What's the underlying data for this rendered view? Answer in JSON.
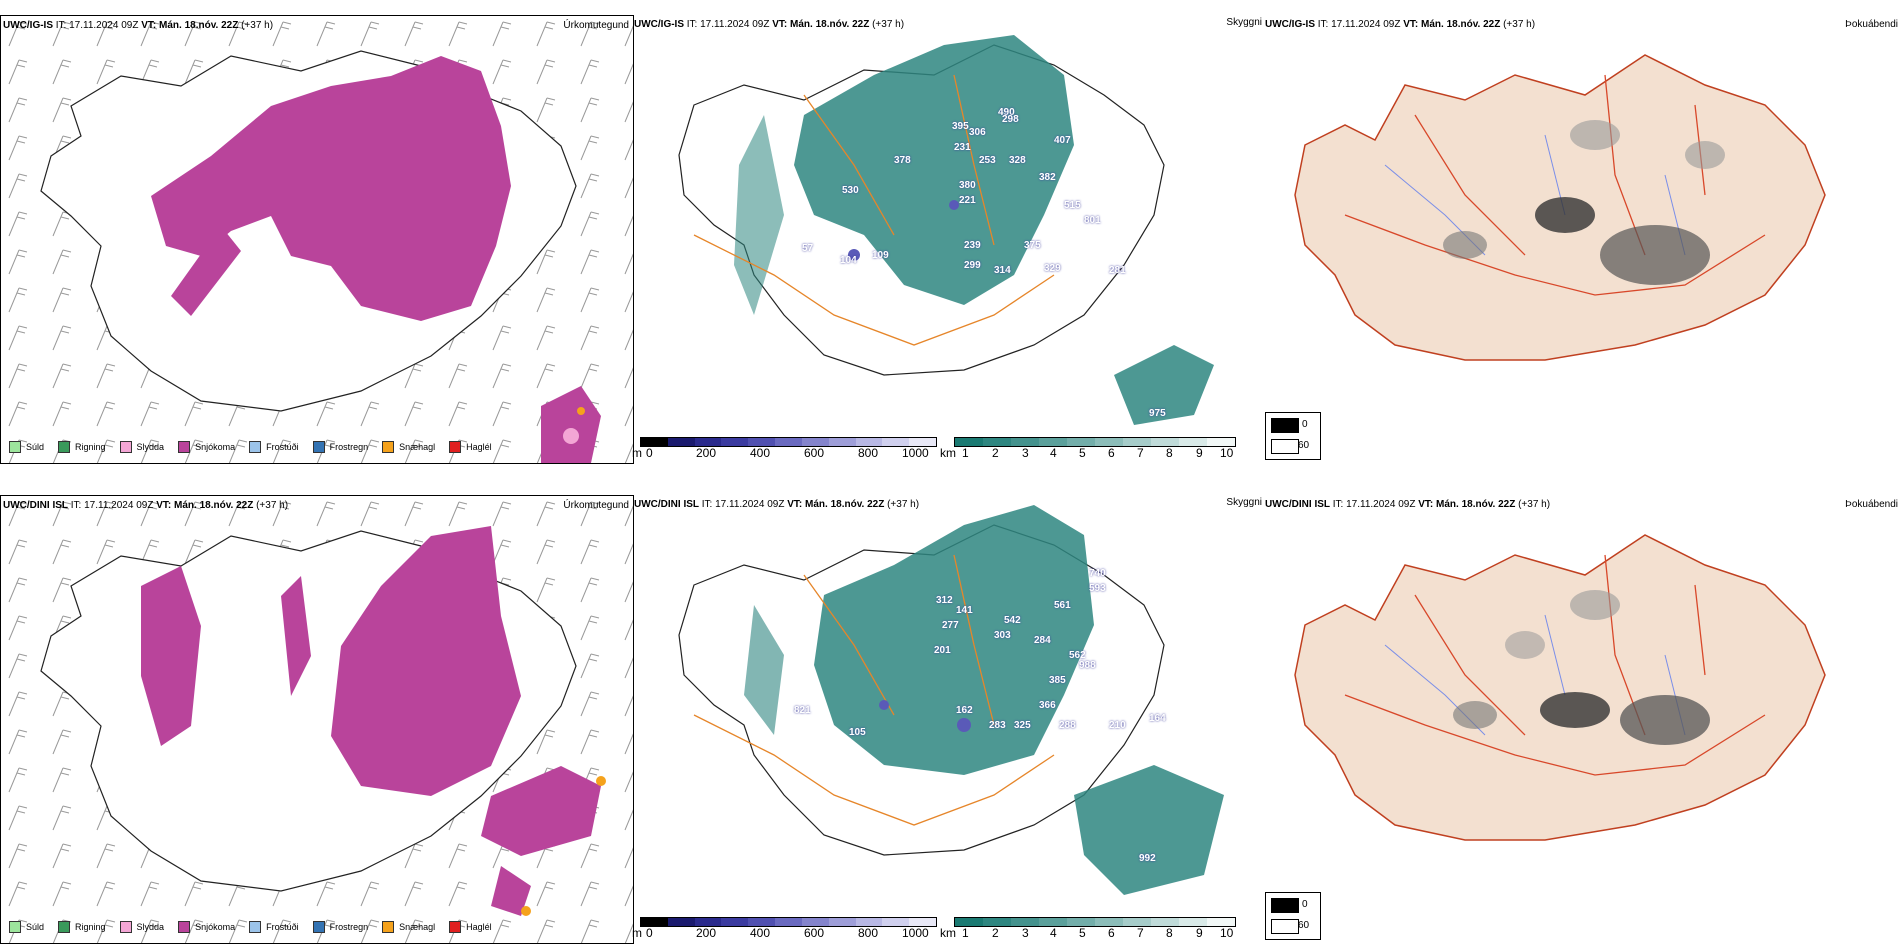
{
  "rows": [
    {
      "model": "UWC/IG-IS",
      "it_label": "IT:",
      "it_value": "17.11.2024 09Z",
      "vt_label": "VT:",
      "vt_value": "Mán. 18.nóv. 22Z",
      "lead": "(+37 h)",
      "titles": {
        "precip": "Úrkomutegund",
        "vis": "Skyggni",
        "fog": "Þokuábendi"
      },
      "cloud_labels": [
        "490",
        "298",
        "395",
        "306",
        "407",
        "231",
        "378",
        "253",
        "328",
        "382",
        "530",
        "380",
        "221",
        "515",
        "801",
        "375",
        "239",
        "299",
        "314",
        "329",
        "281",
        "104",
        "109",
        "57",
        "975"
      ]
    },
    {
      "model": "UWC/DINI ISL",
      "it_label": "IT:",
      "it_value": "17.11.2024 09Z",
      "vt_label": "VT:",
      "vt_value": "Mán. 18.nóv. 22Z",
      "lead": "(+37 h)",
      "titles": {
        "precip": "Úrkomutegund",
        "vis": "Skyggni",
        "fog": "Þokuábendi"
      },
      "cloud_labels": [
        "740",
        "593",
        "312",
        "141",
        "561",
        "542",
        "277",
        "303",
        "284",
        "562",
        "201",
        "988",
        "385",
        "821",
        "366",
        "162",
        "283",
        "325",
        "288",
        "210",
        "164",
        "105",
        "992"
      ]
    }
  ],
  "precip_legend": [
    {
      "label": "Súld",
      "color": "#9de59d"
    },
    {
      "label": "Rigning",
      "color": "#3a9a5b"
    },
    {
      "label": "Slydda",
      "color": "#f3a6d5"
    },
    {
      "label": "Snjókoma",
      "color": "#b9449b"
    },
    {
      "label": "Frostúði",
      "color": "#9cc4ea"
    },
    {
      "label": "Frostregn",
      "color": "#3474b4"
    },
    {
      "label": "Snæhagl",
      "color": "#f5a21c"
    },
    {
      "label": "Haglél",
      "color": "#e02020"
    }
  ],
  "cloudbase_scale": {
    "unit": "m",
    "ticks": [
      "0",
      "200",
      "400",
      "600",
      "800",
      "1000"
    ],
    "colors": [
      "#000000",
      "#1a1a6e",
      "#2a2a8c",
      "#3b3ba0",
      "#5050b0",
      "#6a6ac0",
      "#8484cc",
      "#9e9ed8",
      "#b8b8e4",
      "#d0d0ee",
      "#e8e8f6"
    ]
  },
  "visibility_scale": {
    "unit": "km",
    "ticks": [
      "1",
      "2",
      "3",
      "4",
      "5",
      "6",
      "7",
      "8",
      "9",
      "10"
    ],
    "colors": [
      "#1a7a72",
      "#2e8680",
      "#44928d",
      "#5ba09b",
      "#73aeaa",
      "#8cbdb9",
      "#a6ccc9",
      "#c0dbd9",
      "#d9eae8",
      "#f2f8f7"
    ]
  },
  "fog_key": {
    "labels": [
      "0",
      "60"
    ],
    "colors": [
      "#000000",
      "#ffffff"
    ]
  },
  "map_colors": {
    "snow": "#b9449b",
    "sleet": "#f3a6d5",
    "hail": "#f5a21c",
    "teal": "#2e8680",
    "cloud": "#5a5ab8",
    "land": "#f3e0d0",
    "roads_orange": "#e6862a",
    "roads_red": "#d8482a",
    "rivers": "#7a8ee8"
  }
}
